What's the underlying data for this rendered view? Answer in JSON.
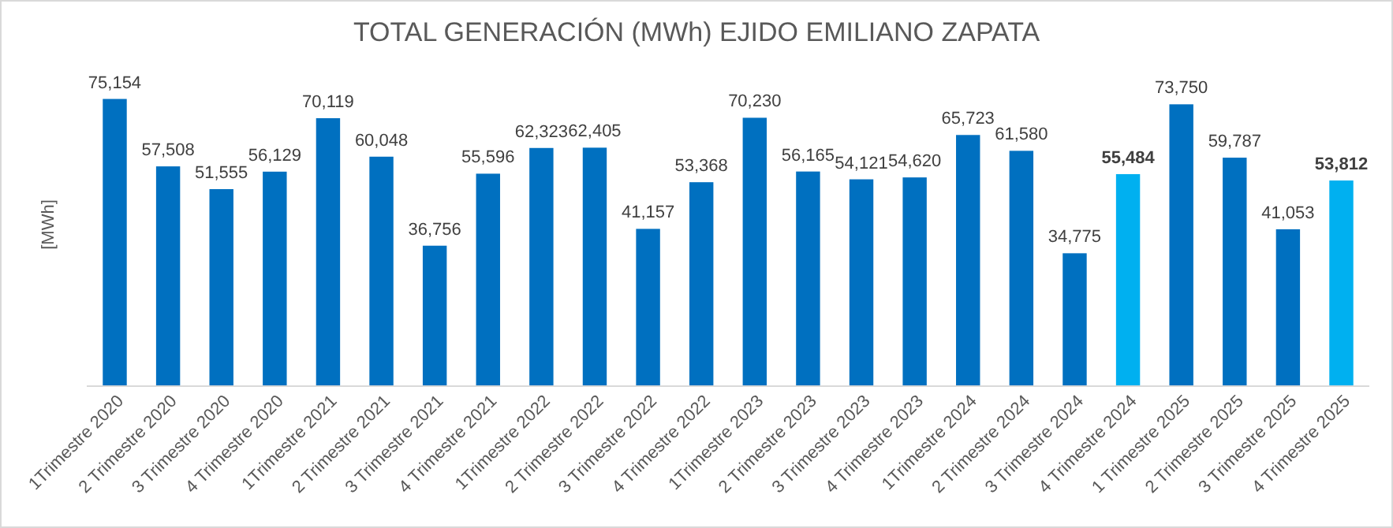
{
  "chart_data": {
    "type": "bar",
    "title": "TOTAL GENERACIÓN (MWh) EJIDO EMILIANO ZAPATA",
    "ylabel": "[MWh]",
    "categories": [
      "1Trimestre 2020",
      "2 Trimestre 2020",
      "3 Trimestre 2020",
      "4 Trimestre 2020",
      "1Trimestre 2021",
      "2 Trimestre 2021",
      "3 Trimestre 2021",
      "4 Trimestre 2021",
      "1Trimestre 2022",
      "2 Trimestre 2022",
      "3 Trimestre 2022",
      "4 Trimestre 2022",
      "1Trimestre 2023",
      "2 Trimestre 2023",
      "3 Trimestre 2023",
      "4 Trimestre 2023",
      "1Trimestre 2024",
      "2 Trimestre 2024",
      "3 Trimestre 2024",
      "4 Trimestre 2024",
      "1 Trimestre 2025",
      "2 Trimestre 2025",
      "3 Trimestre 2025",
      "4 Trimestre 2025"
    ],
    "values": [
      75154,
      57508,
      51555,
      56129,
      70119,
      60048,
      36756,
      55596,
      62323,
      62405,
      41157,
      53368,
      70230,
      56165,
      54121,
      54620,
      65723,
      61580,
      34775,
      55484,
      73750,
      59787,
      41053,
      53812
    ],
    "colors": [
      "#0070c0",
      "#0070c0",
      "#0070c0",
      "#0070c0",
      "#0070c0",
      "#0070c0",
      "#0070c0",
      "#0070c0",
      "#0070c0",
      "#0070c0",
      "#0070c0",
      "#0070c0",
      "#0070c0",
      "#0070c0",
      "#0070c0",
      "#0070c0",
      "#0070c0",
      "#0070c0",
      "#0070c0",
      "#00b0f0",
      "#0070c0",
      "#0070c0",
      "#0070c0",
      "#00b0f0"
    ],
    "value_labels": [
      "75,154",
      "57,508",
      "51,555",
      "56,129",
      "70,119",
      "60,048",
      "36,756",
      "55,596",
      "62,323",
      "62,405",
      "41,157",
      "53,368",
      "70,230",
      "56,165",
      "54,121",
      "54,620",
      "65,723",
      "61,580",
      "34,775",
      "55,484",
      "73,750",
      "59,787",
      "41,053",
      "53,812"
    ],
    "tick_labels": "x"
  }
}
